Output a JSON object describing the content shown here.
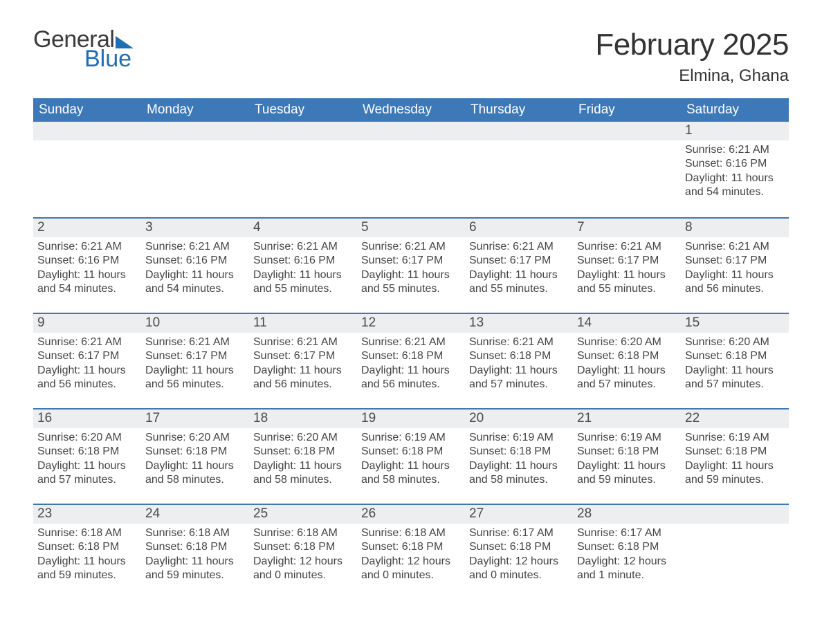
{
  "brand": {
    "line1": "General",
    "line2": "Blue",
    "accent_color": "#1f6db3"
  },
  "title": "February 2025",
  "location": "Elmina, Ghana",
  "colors": {
    "header_bg": "#3d78b8",
    "header_text": "#ffffff",
    "strip_bg": "#edeeef",
    "strip_border": "#3d78b8",
    "text": "#2b2b2b",
    "page_bg": "#ffffff"
  },
  "fonts": {
    "title_size_pt": 33,
    "location_size_pt": 18,
    "header_size_pt": 14,
    "daynum_size_pt": 14,
    "body_size_pt": 12,
    "family": "Segoe UI / Arial"
  },
  "day_names": [
    "Sunday",
    "Monday",
    "Tuesday",
    "Wednesday",
    "Thursday",
    "Friday",
    "Saturday"
  ],
  "weeks": [
    [
      null,
      null,
      null,
      null,
      null,
      null,
      {
        "n": 1,
        "sunrise": "6:21 AM",
        "sunset": "6:16 PM",
        "day_h": 11,
        "day_m": 54
      }
    ],
    [
      {
        "n": 2,
        "sunrise": "6:21 AM",
        "sunset": "6:16 PM",
        "day_h": 11,
        "day_m": 54
      },
      {
        "n": 3,
        "sunrise": "6:21 AM",
        "sunset": "6:16 PM",
        "day_h": 11,
        "day_m": 54
      },
      {
        "n": 4,
        "sunrise": "6:21 AM",
        "sunset": "6:16 PM",
        "day_h": 11,
        "day_m": 55
      },
      {
        "n": 5,
        "sunrise": "6:21 AM",
        "sunset": "6:17 PM",
        "day_h": 11,
        "day_m": 55
      },
      {
        "n": 6,
        "sunrise": "6:21 AM",
        "sunset": "6:17 PM",
        "day_h": 11,
        "day_m": 55
      },
      {
        "n": 7,
        "sunrise": "6:21 AM",
        "sunset": "6:17 PM",
        "day_h": 11,
        "day_m": 55
      },
      {
        "n": 8,
        "sunrise": "6:21 AM",
        "sunset": "6:17 PM",
        "day_h": 11,
        "day_m": 56
      }
    ],
    [
      {
        "n": 9,
        "sunrise": "6:21 AM",
        "sunset": "6:17 PM",
        "day_h": 11,
        "day_m": 56
      },
      {
        "n": 10,
        "sunrise": "6:21 AM",
        "sunset": "6:17 PM",
        "day_h": 11,
        "day_m": 56
      },
      {
        "n": 11,
        "sunrise": "6:21 AM",
        "sunset": "6:17 PM",
        "day_h": 11,
        "day_m": 56
      },
      {
        "n": 12,
        "sunrise": "6:21 AM",
        "sunset": "6:18 PM",
        "day_h": 11,
        "day_m": 56
      },
      {
        "n": 13,
        "sunrise": "6:21 AM",
        "sunset": "6:18 PM",
        "day_h": 11,
        "day_m": 57
      },
      {
        "n": 14,
        "sunrise": "6:20 AM",
        "sunset": "6:18 PM",
        "day_h": 11,
        "day_m": 57
      },
      {
        "n": 15,
        "sunrise": "6:20 AM",
        "sunset": "6:18 PM",
        "day_h": 11,
        "day_m": 57
      }
    ],
    [
      {
        "n": 16,
        "sunrise": "6:20 AM",
        "sunset": "6:18 PM",
        "day_h": 11,
        "day_m": 57
      },
      {
        "n": 17,
        "sunrise": "6:20 AM",
        "sunset": "6:18 PM",
        "day_h": 11,
        "day_m": 58
      },
      {
        "n": 18,
        "sunrise": "6:20 AM",
        "sunset": "6:18 PM",
        "day_h": 11,
        "day_m": 58
      },
      {
        "n": 19,
        "sunrise": "6:19 AM",
        "sunset": "6:18 PM",
        "day_h": 11,
        "day_m": 58
      },
      {
        "n": 20,
        "sunrise": "6:19 AM",
        "sunset": "6:18 PM",
        "day_h": 11,
        "day_m": 58
      },
      {
        "n": 21,
        "sunrise": "6:19 AM",
        "sunset": "6:18 PM",
        "day_h": 11,
        "day_m": 59
      },
      {
        "n": 22,
        "sunrise": "6:19 AM",
        "sunset": "6:18 PM",
        "day_h": 11,
        "day_m": 59
      }
    ],
    [
      {
        "n": 23,
        "sunrise": "6:18 AM",
        "sunset": "6:18 PM",
        "day_h": 11,
        "day_m": 59
      },
      {
        "n": 24,
        "sunrise": "6:18 AM",
        "sunset": "6:18 PM",
        "day_h": 11,
        "day_m": 59
      },
      {
        "n": 25,
        "sunrise": "6:18 AM",
        "sunset": "6:18 PM",
        "day_h": 12,
        "day_m": 0
      },
      {
        "n": 26,
        "sunrise": "6:18 AM",
        "sunset": "6:18 PM",
        "day_h": 12,
        "day_m": 0
      },
      {
        "n": 27,
        "sunrise": "6:17 AM",
        "sunset": "6:18 PM",
        "day_h": 12,
        "day_m": 0
      },
      {
        "n": 28,
        "sunrise": "6:17 AM",
        "sunset": "6:18 PM",
        "day_h": 12,
        "day_m": 1
      },
      null
    ]
  ],
  "labels": {
    "sunrise": "Sunrise",
    "sunset": "Sunset",
    "daylight": "Daylight",
    "hours": "hours",
    "and": "and",
    "minutes": "minutes",
    "minute": "minute"
  }
}
